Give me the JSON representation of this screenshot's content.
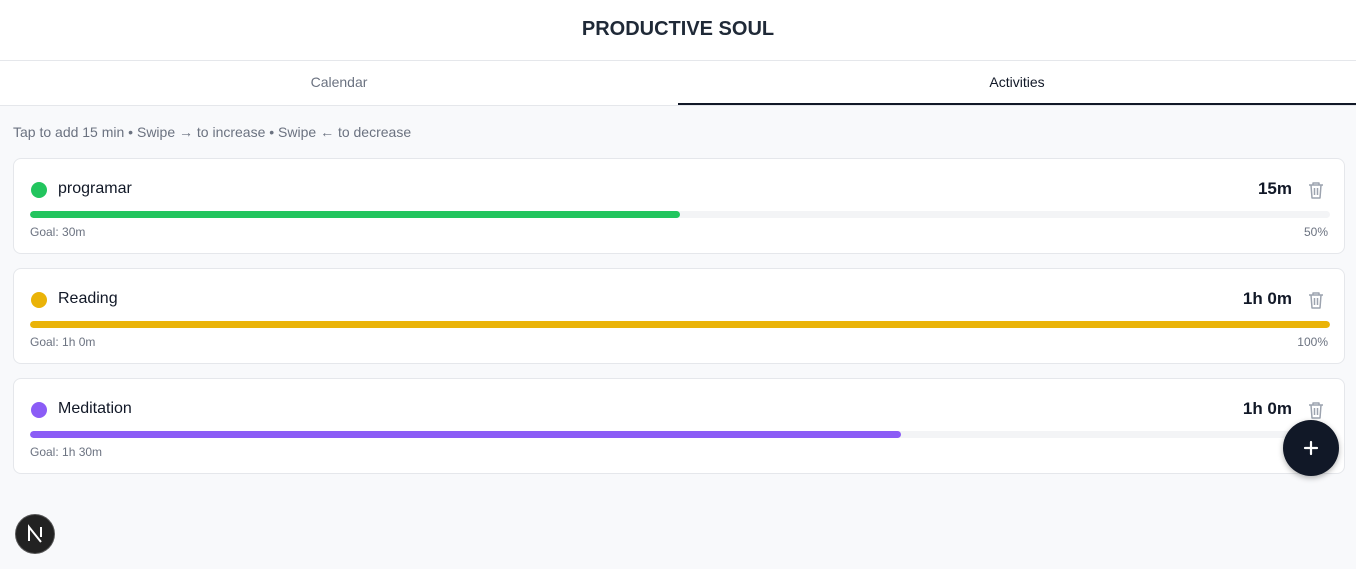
{
  "header": {
    "title": "PRODUCTIVE SOUL"
  },
  "tabs": [
    {
      "label": "Calendar",
      "active": false
    },
    {
      "label": "Activities",
      "active": true
    }
  ],
  "hint": "Tap to add 15 min • Swipe → to increase • Swipe ← to decrease",
  "activities": [
    {
      "name": "programar",
      "color": "#22c55e",
      "time": "15m",
      "goal": "Goal: 30m",
      "progress": 50,
      "progress_label": "50%"
    },
    {
      "name": "Reading",
      "color": "#eab308",
      "time": "1h 0m",
      "goal": "Goal: 1h 0m",
      "progress": 100,
      "progress_label": "100%"
    },
    {
      "name": "Meditation",
      "color": "#8b5cf6",
      "time": "1h 0m",
      "goal": "Goal: 1h 30m",
      "progress": 67
    }
  ]
}
